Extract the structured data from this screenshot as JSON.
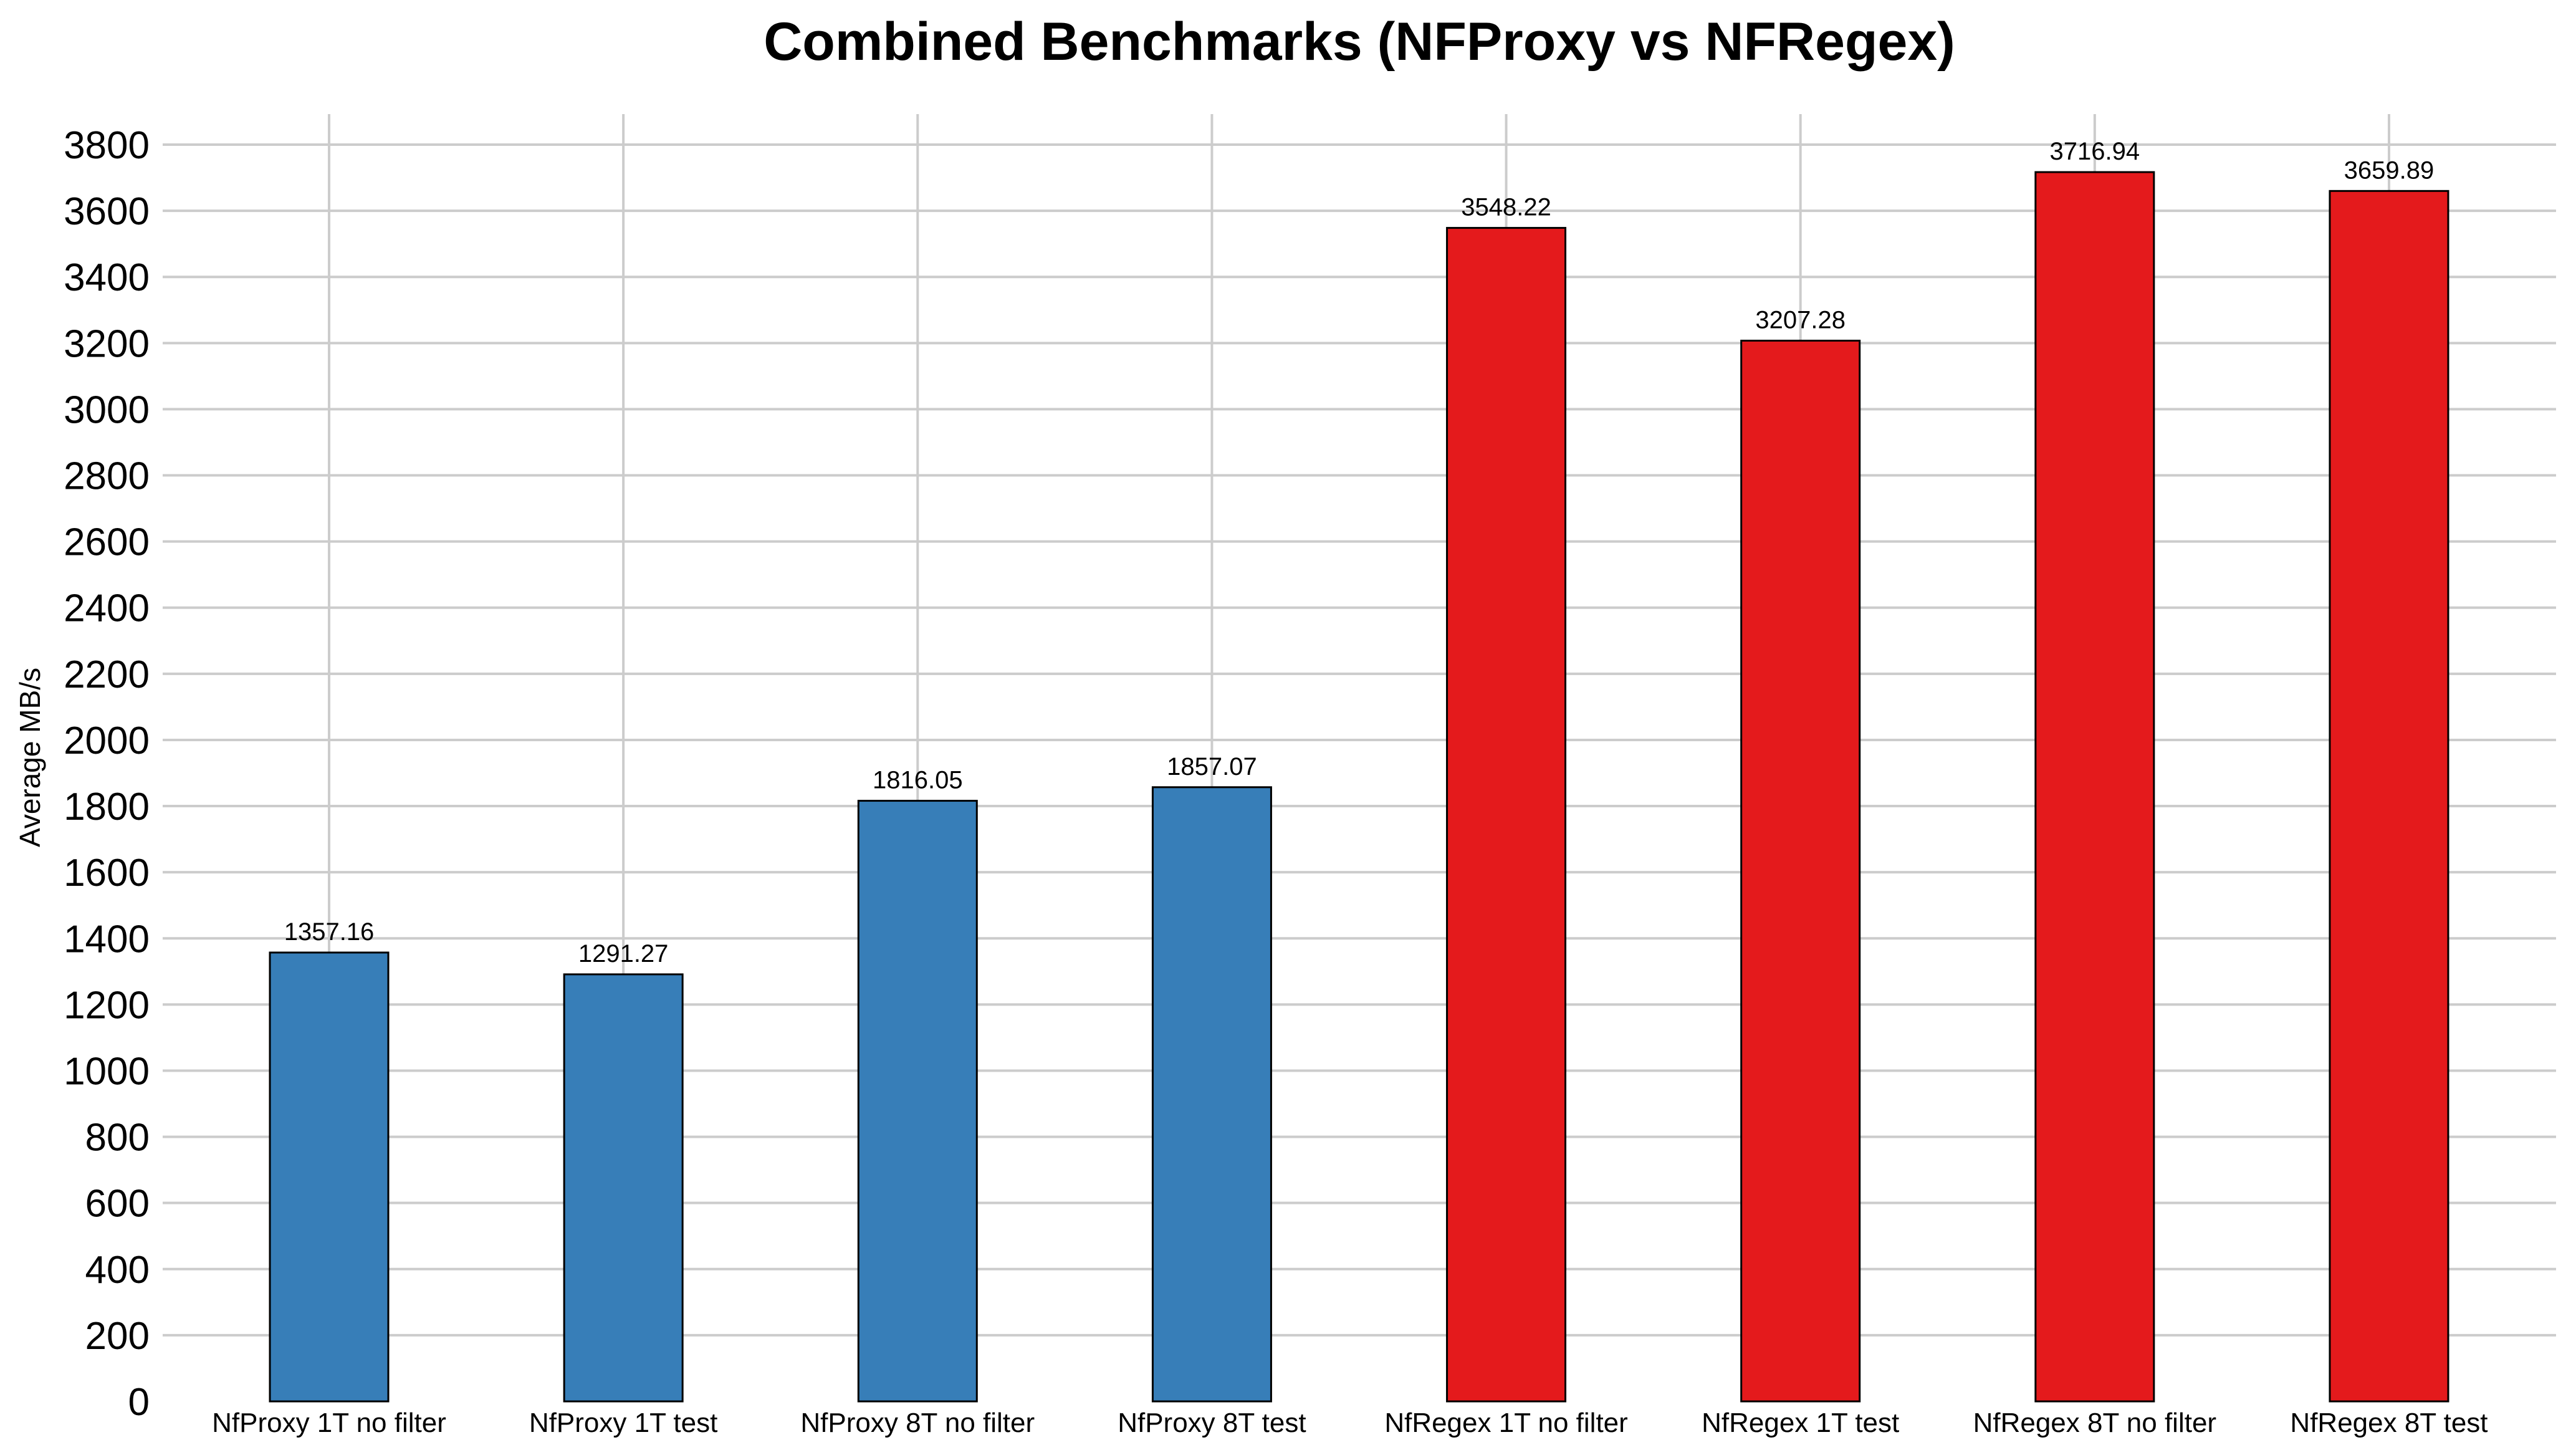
{
  "page": {
    "background_color": "#ffffff",
    "text_color": "#000000"
  },
  "chart_data": {
    "type": "bar",
    "title": "Combined Benchmarks (NFProxy vs NFRegex)",
    "xlabel": "",
    "ylabel": "Average MB/s",
    "categories": [
      "NfProxy 1T no filter",
      "NfProxy 1T test",
      "NfProxy 8T no filter",
      "NfProxy 8T test",
      "NfRegex 1T no filter",
      "NfRegex 1T test",
      "NfRegex 8T no filter",
      "NfRegex 8T test"
    ],
    "values": [
      1357.16,
      1291.27,
      1816.05,
      1857.07,
      3548.22,
      3207.28,
      3716.94,
      3659.89
    ],
    "value_labels": [
      "1357.16",
      "1291.27",
      "1816.05",
      "1857.07",
      "3548.22",
      "3207.28",
      "3716.94",
      "3659.89"
    ],
    "bar_colors": [
      "#377eb8",
      "#377eb8",
      "#377eb8",
      "#377eb8",
      "#e41a1c",
      "#e41a1c",
      "#e41a1c",
      "#e41a1c"
    ],
    "series_groups": [
      {
        "name": "NFProxy",
        "color": "#377eb8"
      },
      {
        "name": "NFRegex",
        "color": "#e41a1c"
      }
    ],
    "bar_edge_color": "#000000",
    "ylim": [
      0,
      3894
    ],
    "yticks": {
      "start": 0,
      "end": 3800,
      "step": 200
    },
    "grid": true,
    "grid_color": "#cccccc",
    "horizontal_gridlines": true,
    "vertical_gridlines": true,
    "legend": null,
    "axis_text_color": "#000000"
  }
}
